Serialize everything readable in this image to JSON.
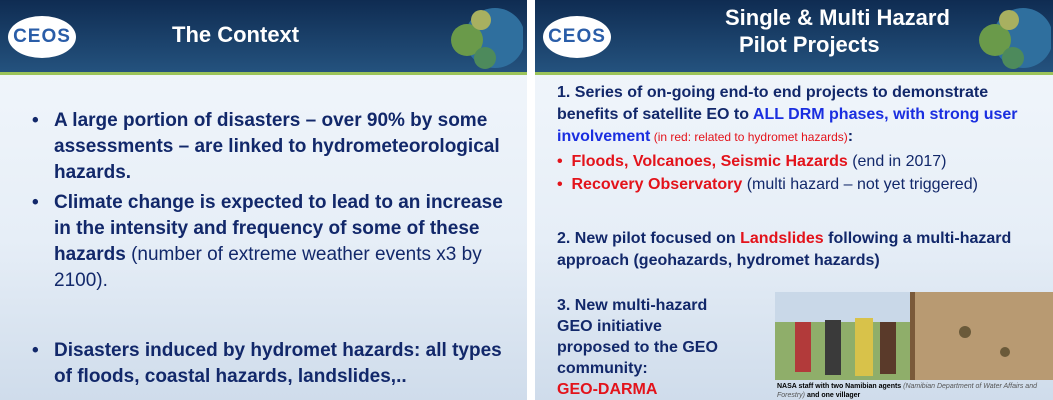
{
  "left_slide": {
    "logo": "CEOS",
    "title": "The Context",
    "bullets": [
      {
        "runs": [
          "A large portion of disasters – over 90% by some assessments – are linked to hydrometeorological hazards."
        ]
      },
      {
        "runs": [
          "Climate change is expected to lead to an increase in the intensity and frequency of some of these hazards",
          " (number of extreme weather events x3 by 2100)."
        ]
      },
      {
        "runs": [
          "Disasters induced by hydromet hazards: all types of floods, coastal hazards, landslides,.."
        ]
      }
    ]
  },
  "right_slide": {
    "logo": "CEOS",
    "title_lines": [
      "Single & Multi Hazard",
      "Pilot Projects"
    ],
    "point1": {
      "runs": [
        "1. Series of on-going end-to end projects to demonstrate benefits of satellite EO to ",
        "ALL DRM phases, with strong user involvement",
        " (in red: related to hydromet hazards)",
        ":"
      ]
    },
    "sub_bullets": [
      {
        "runs": [
          "Floods, Volcanoes, Seismic Hazards",
          " (end in 2017)"
        ]
      },
      {
        "runs": [
          "Recovery Observatory",
          " (multi hazard – not yet triggered)"
        ]
      }
    ],
    "point2": {
      "runs": [
        "2. New pilot focused on ",
        "Landslides",
        " following a multi-hazard approach (geohazards, hydromet hazards)"
      ]
    },
    "point3": {
      "runs": [
        "3. New multi-hazard GEO initiative proposed to the GEO community:",
        "GEO-DARMA"
      ]
    },
    "caption": {
      "runs": [
        "NASA staff with two Namibian agents ",
        "(Namibian Department of Water Affairs and Forestry)",
        " and one villager"
      ]
    }
  }
}
